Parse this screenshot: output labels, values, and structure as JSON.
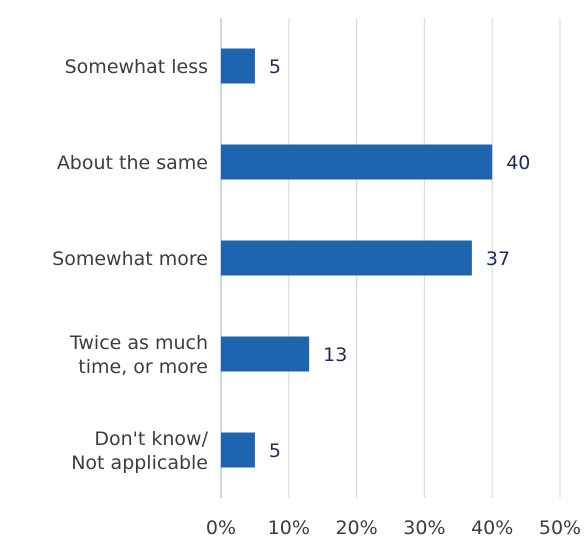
{
  "chart_data": {
    "type": "bar",
    "orientation": "horizontal",
    "categories": [
      [
        "Somewhat less"
      ],
      [
        "About the same"
      ],
      [
        "Somewhat more"
      ],
      [
        "Twice as much",
        "time, or more"
      ],
      [
        "Don't know/",
        "Not applicable"
      ]
    ],
    "values": [
      5,
      40,
      37,
      13,
      5
    ],
    "x_ticks": [
      "0%",
      "10%",
      "20%",
      "30%",
      "40%",
      "50%"
    ],
    "xlim": [
      0,
      50
    ],
    "grid": true,
    "colors": {
      "bar": "#1f64ae"
    }
  }
}
